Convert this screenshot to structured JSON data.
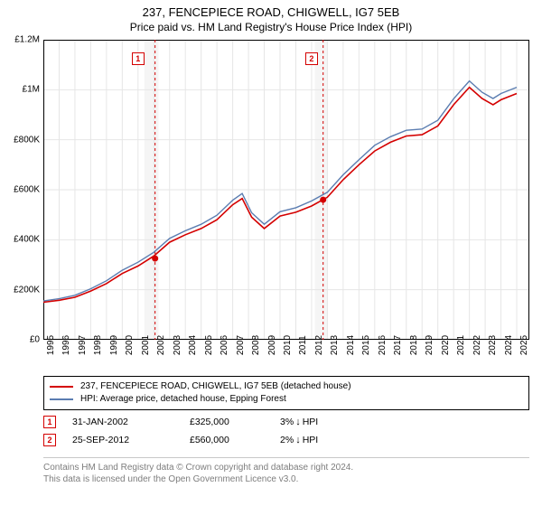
{
  "title": {
    "main": "237, FENCEPIECE ROAD, CHIGWELL, IG7 5EB",
    "sub": "Price paid vs. HM Land Registry's House Price Index (HPI)"
  },
  "chart": {
    "type": "line",
    "background_color": "#ffffff",
    "grid_color": "#e6e6e6",
    "border_color": "#000000",
    "highlight_band_color": "#f5f5f5",
    "highlight_bands": [
      [
        2001.4,
        2002.3
      ],
      [
        2012.2,
        2013.0
      ]
    ],
    "xlim": [
      1995,
      2025.8
    ],
    "ylim": [
      0,
      1200000
    ],
    "y_ticks": [
      0,
      200000,
      400000,
      600000,
      800000,
      1000000,
      1200000
    ],
    "y_tick_labels": [
      "£0",
      "£200K",
      "£400K",
      "£600K",
      "£800K",
      "£1M",
      "£1.2M"
    ],
    "x_ticks": [
      1995,
      1996,
      1997,
      1998,
      1999,
      2000,
      2001,
      2002,
      2003,
      2004,
      2005,
      2006,
      2007,
      2008,
      2009,
      2010,
      2011,
      2012,
      2013,
      2014,
      2015,
      2016,
      2017,
      2018,
      2019,
      2020,
      2021,
      2022,
      2023,
      2024,
      2025
    ],
    "x_tick_labels": [
      "1995",
      "1996",
      "1997",
      "1998",
      "1999",
      "2000",
      "2001",
      "2002",
      "2003",
      "2004",
      "2005",
      "2006",
      "2007",
      "2008",
      "2009",
      "2010",
      "2011",
      "2012",
      "2013",
      "2014",
      "2015",
      "2016",
      "2017",
      "2018",
      "2019",
      "2020",
      "2021",
      "2022",
      "2023",
      "2024",
      "2025"
    ],
    "series": [
      {
        "name": "property",
        "label": "237, FENCEPIECE ROAD, CHIGWELL, IG7 5EB (detached house)",
        "color": "#d40000",
        "line_width": 1.6,
        "x": [
          1995,
          1996,
          1997,
          1998,
          1999,
          2000,
          2001,
          2002,
          2003,
          2004,
          2005,
          2006,
          2007,
          2007.6,
          2008.2,
          2009,
          2010,
          2011,
          2012,
          2013,
          2014,
          2015,
          2016,
          2017,
          2018,
          2019,
          2020,
          2021,
          2022,
          2022.8,
          2023.5,
          2024,
          2025
        ],
        "y": [
          150000,
          158000,
          170000,
          195000,
          225000,
          265000,
          295000,
          335000,
          390000,
          420000,
          445000,
          480000,
          540000,
          565000,
          490000,
          445000,
          495000,
          510000,
          535000,
          570000,
          640000,
          700000,
          755000,
          790000,
          815000,
          820000,
          855000,
          940000,
          1010000,
          965000,
          940000,
          960000,
          985000
        ]
      },
      {
        "name": "hpi",
        "label": "HPI: Average price, detached house, Epping Forest",
        "color": "#5b7db1",
        "line_width": 1.4,
        "x": [
          1995,
          1996,
          1997,
          1998,
          1999,
          2000,
          2001,
          2002,
          2003,
          2004,
          2005,
          2006,
          2007,
          2007.6,
          2008.2,
          2009,
          2010,
          2011,
          2012,
          2013,
          2014,
          2015,
          2016,
          2017,
          2018,
          2019,
          2020,
          2021,
          2022,
          2022.8,
          2023.5,
          2024,
          2025
        ],
        "y": [
          155000,
          164000,
          178000,
          204000,
          236000,
          278000,
          310000,
          350000,
          405000,
          436000,
          462000,
          498000,
          558000,
          585000,
          508000,
          462000,
          512000,
          528000,
          555000,
          590000,
          660000,
          720000,
          778000,
          812000,
          838000,
          843000,
          878000,
          964000,
          1035000,
          990000,
          965000,
          985000,
          1010000
        ]
      }
    ],
    "markers": [
      {
        "id": "1",
        "x": 2002.08,
        "y": 325000,
        "badge_x": 2001.0,
        "badge_y": 1150000,
        "line_color": "#d40000"
      },
      {
        "id": "2",
        "x": 2012.73,
        "y": 560000,
        "badge_x": 2012.0,
        "badge_y": 1150000,
        "line_color": "#d40000"
      }
    ],
    "marker_point_color": "#d40000",
    "marker_point_radius": 3.5,
    "marker_dash": "3,3"
  },
  "legend": {
    "items": [
      {
        "color": "#d40000",
        "label": "237, FENCEPIECE ROAD, CHIGWELL, IG7 5EB (detached house)"
      },
      {
        "color": "#5b7db1",
        "label": "HPI: Average price, detached house, Epping Forest"
      }
    ]
  },
  "marker_table": [
    {
      "id": "1",
      "date": "31-JAN-2002",
      "price": "£325,000",
      "diff_pct": "3%",
      "diff_dir": "down",
      "diff_ref": "HPI"
    },
    {
      "id": "2",
      "date": "25-SEP-2012",
      "price": "£560,000",
      "diff_pct": "2%",
      "diff_dir": "down",
      "diff_ref": "HPI"
    }
  ],
  "footer": {
    "line1": "Contains HM Land Registry data © Crown copyright and database right 2024.",
    "line2": "This data is licensed under the Open Government Licence v3.0."
  },
  "typography": {
    "title_fontsize": 13,
    "subtitle_fontsize": 12,
    "axis_label_fontsize": 10,
    "legend_fontsize": 10,
    "footer_fontsize": 10,
    "footer_color": "#7d7d7d"
  }
}
